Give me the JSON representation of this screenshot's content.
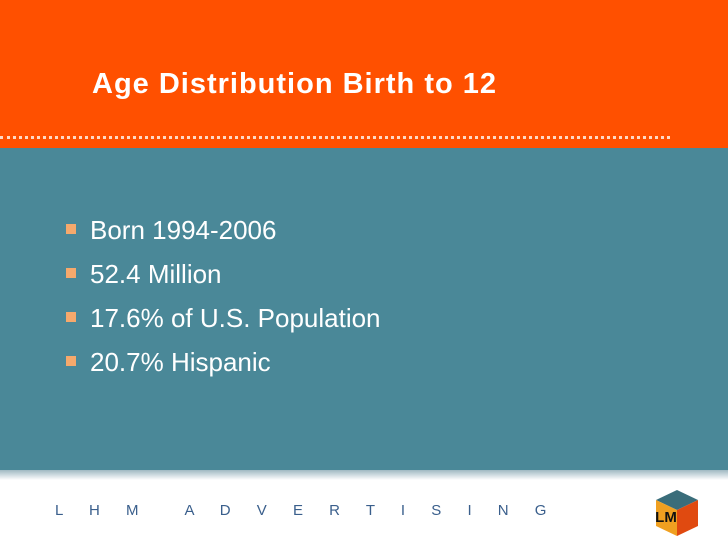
{
  "header": {
    "title": "Age Distribution Birth to 12"
  },
  "bullets": [
    "Born 1994-2006",
    "52.4 Million",
    "17.6% of U.S. Population",
    "20.7% Hispanic"
  ],
  "footer": {
    "words": [
      "L H M",
      "A D V E R T I S I N G"
    ],
    "logo": "LM"
  }
}
